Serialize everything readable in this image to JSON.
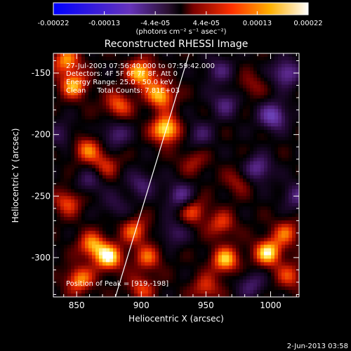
{
  "colorbar": {
    "ticks": [
      "-0.00022",
      "-0.00013",
      "-4.4e-05",
      "4.4e-05",
      "0.00013",
      "0.00022"
    ],
    "unit_label": "(photons cm⁻² s⁻¹ asec⁻²)"
  },
  "chart_data": {
    "type": "heatmap",
    "title": "Reconstructed RHESSI Image",
    "xlabel": "Heliocentric X (arcsec)",
    "ylabel": "Heliocentric Y (arcsec)",
    "xlim": [
      832,
      1022
    ],
    "ylim": [
      -332,
      -134
    ],
    "xticks": [
      850,
      900,
      950,
      1000
    ],
    "yticks": [
      -150,
      -200,
      -250,
      -300
    ],
    "colorbar_range": [
      -0.00022,
      0.00022
    ],
    "annotations": [
      "27-Jul-2003 07:56:40.000 to 07:59:42.000",
      "Detectors: 4F 5F 6F 7F 8F, Att 0",
      "Energy Range: 25.0 - 50.0 keV",
      "Clean     Total Counts: 7.81E+03"
    ],
    "peak_label": "Position of Peak = [919,-198]",
    "peak": [
      919,
      -198
    ],
    "limb_line": [
      [
        880,
        -332
      ],
      [
        937,
        -134
      ]
    ],
    "blobs": [
      {
        "x": 919,
        "y": -196,
        "v": 1.0
      },
      {
        "x": 915,
        "y": -168,
        "v": 0.85
      },
      {
        "x": 900,
        "y": -150,
        "v": 0.9
      },
      {
        "x": 882,
        "y": -176,
        "v": 0.6
      },
      {
        "x": 848,
        "y": -160,
        "v": 0.75
      },
      {
        "x": 842,
        "y": -140,
        "v": 0.7
      },
      {
        "x": 872,
        "y": -225,
        "v": 0.45
      },
      {
        "x": 858,
        "y": -212,
        "v": 0.6
      },
      {
        "x": 843,
        "y": -255,
        "v": 0.55
      },
      {
        "x": 862,
        "y": -290,
        "v": 0.7
      },
      {
        "x": 875,
        "y": -300,
        "v": 0.9
      },
      {
        "x": 852,
        "y": -318,
        "v": 0.7
      },
      {
        "x": 895,
        "y": -278,
        "v": 0.6
      },
      {
        "x": 905,
        "y": -300,
        "v": 0.55
      },
      {
        "x": 900,
        "y": -325,
        "v": 0.5
      },
      {
        "x": 940,
        "y": -262,
        "v": 0.55
      },
      {
        "x": 962,
        "y": -273,
        "v": 0.5
      },
      {
        "x": 965,
        "y": -302,
        "v": 0.8
      },
      {
        "x": 950,
        "y": -325,
        "v": 0.5
      },
      {
        "x": 998,
        "y": -296,
        "v": 0.9
      },
      {
        "x": 1012,
        "y": -280,
        "v": 0.55
      },
      {
        "x": 1015,
        "y": -315,
        "v": 0.5
      },
      {
        "x": 940,
        "y": -222,
        "v": 0.35
      },
      {
        "x": 975,
        "y": -238,
        "v": 0.35
      },
      {
        "x": 985,
        "y": -160,
        "v": 0.3
      },
      {
        "x": 1002,
        "y": -185,
        "v": -0.8
      },
      {
        "x": 1012,
        "y": -150,
        "v": -0.7
      },
      {
        "x": 990,
        "y": -228,
        "v": -0.65
      },
      {
        "x": 965,
        "y": -175,
        "v": -0.5
      },
      {
        "x": 930,
        "y": -250,
        "v": -0.6
      },
      {
        "x": 945,
        "y": -200,
        "v": -0.4
      },
      {
        "x": 880,
        "y": -200,
        "v": -0.5
      },
      {
        "x": 860,
        "y": -238,
        "v": -0.4
      },
      {
        "x": 900,
        "y": -240,
        "v": -0.45
      },
      {
        "x": 925,
        "y": -280,
        "v": -0.4
      },
      {
        "x": 960,
        "y": -148,
        "v": -0.45
      },
      {
        "x": 1020,
        "y": -250,
        "v": -0.5
      },
      {
        "x": 985,
        "y": -322,
        "v": -0.45
      },
      {
        "x": 838,
        "y": -200,
        "v": -0.35
      },
      {
        "x": 880,
        "y": -258,
        "v": -0.3
      }
    ]
  },
  "footer": {
    "date": "2-Jun-2013 03:58"
  }
}
